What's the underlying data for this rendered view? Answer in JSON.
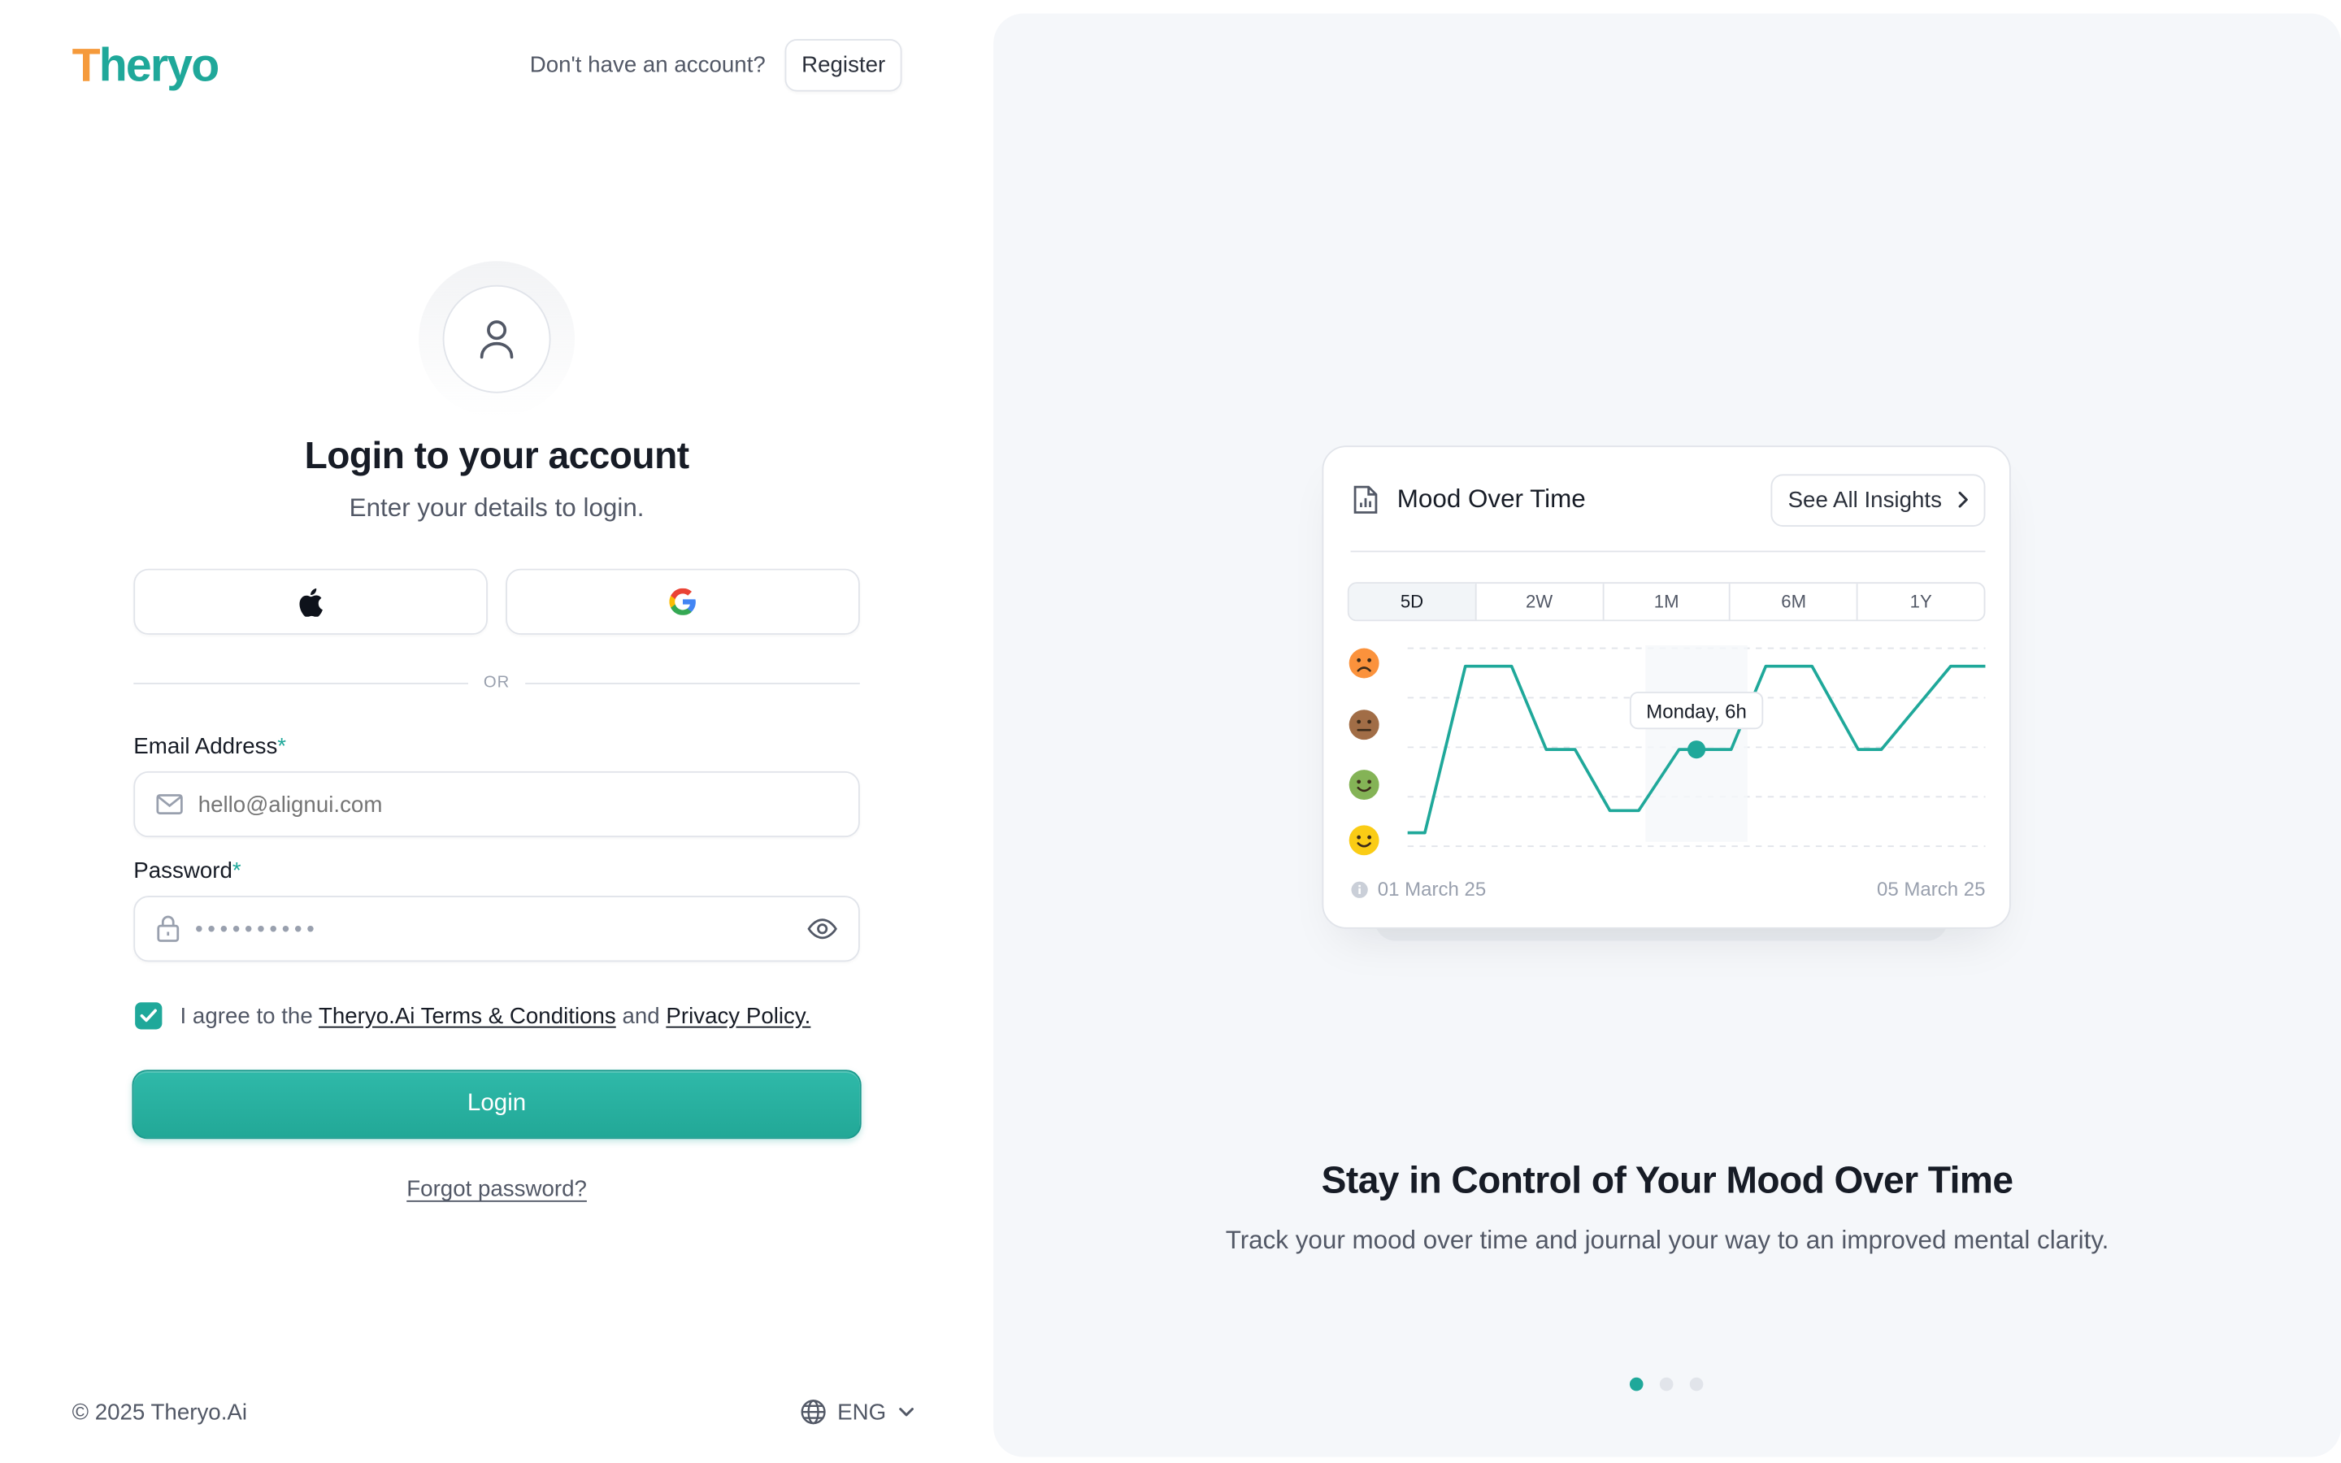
{
  "brand": {
    "logo_prefix": "T",
    "logo_rest": "heryo",
    "logo_color": "#1fa89a",
    "logo_accent": "#f59a3b"
  },
  "header": {
    "prompt": "Don't have an account?",
    "register_label": "Register"
  },
  "login": {
    "title": "Login to your account",
    "subtitle": "Enter your details to login.",
    "apple_icon": "apple-icon",
    "google_icon": "google-icon",
    "divider": "OR",
    "email_label": "Email Address",
    "email_placeholder": "hello@alignui.com",
    "password_label": "Password",
    "password_mask": "••••••••••",
    "required_mark": "*",
    "agree_prefix": "I agree to the",
    "terms_link": "Theryo.Ai Terms & Conditions",
    "agree_and": "and",
    "privacy_link": "Privacy Policy.",
    "agree_checked": true,
    "login_button": "Login",
    "forgot": "Forgot password?"
  },
  "footer": {
    "copyright": "© 2025 Theryo.Ai",
    "language": "ENG"
  },
  "showcase": {
    "card_title": "Mood Over Time",
    "insights_button": "See All Insights",
    "ranges": [
      "5D",
      "2W",
      "1M",
      "6M",
      "1Y"
    ],
    "active_range": "5D",
    "tooltip": "Monday, 6h",
    "start_date": "01 March 25",
    "end_date": "05 March 25",
    "headline": "Stay in Control of Your Mood Over Time",
    "description": "Track your mood over time and journal your way to an improved mental clarity.",
    "slides": 3,
    "active_slide": 0,
    "accent_color": "#1fa89a"
  },
  "chart_data": {
    "type": "line",
    "title": "Mood Over Time",
    "y_categories": [
      "happy",
      "content",
      "neutral",
      "sad"
    ],
    "mood_icons": [
      "sad-face-icon",
      "neutral-face-icon",
      "content-face-icon",
      "happy-face-icon"
    ],
    "x_range": [
      "01 March 25",
      "05 March 25"
    ],
    "series": [
      {
        "values": [
          {
            "t": 0.0,
            "mood": 0
          },
          {
            "t": 0.03,
            "mood": 0
          },
          {
            "t": 0.1,
            "mood": 3
          },
          {
            "t": 0.18,
            "mood": 3
          },
          {
            "t": 0.24,
            "mood": 1.5
          },
          {
            "t": 0.29,
            "mood": 1.5
          },
          {
            "t": 0.35,
            "mood": 0.4
          },
          {
            "t": 0.4,
            "mood": 0.4
          },
          {
            "t": 0.47,
            "mood": 1.5
          },
          {
            "t": 0.56,
            "mood": 1.5
          },
          {
            "t": 0.62,
            "mood": 3
          },
          {
            "t": 0.7,
            "mood": 3
          },
          {
            "t": 0.78,
            "mood": 1.5
          },
          {
            "t": 0.82,
            "mood": 1.5
          },
          {
            "t": 0.94,
            "mood": 3
          },
          {
            "t": 1.0,
            "mood": 3
          }
        ]
      }
    ],
    "highlight": {
      "t": 0.5,
      "mood": 1.5,
      "label": "Monday, 6h"
    },
    "grid": true
  }
}
